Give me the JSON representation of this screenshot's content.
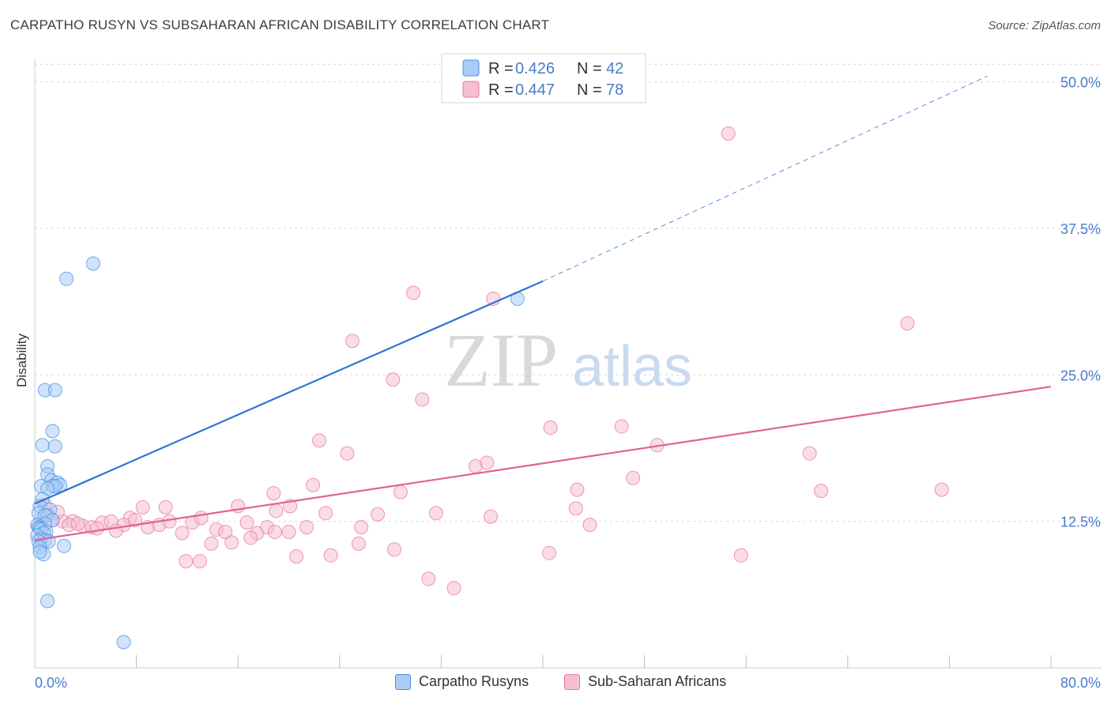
{
  "title": "CARPATHO RUSYN VS SUBSAHARAN AFRICAN DISABILITY CORRELATION CHART",
  "source": "Source: ZipAtlas.com",
  "watermark": {
    "zip": "ZIP",
    "atlas": "atlas"
  },
  "colors": {
    "blue": "#4a90e2",
    "blue_fill": "#aaccf5",
    "blue_line": "#2f75d0",
    "pink": "#e8779c",
    "pink_fill": "#f6bfd1",
    "pink_line": "#e0648e",
    "tick_label": "#4a7cc9",
    "grid": "#d9d9d9"
  },
  "legend": {
    "rows": [
      {
        "r_label": "R = ",
        "r_value": "0.426",
        "n_label": "N = ",
        "n_value": "42",
        "series": "blue"
      },
      {
        "r_label": "R = ",
        "r_value": "0.447",
        "n_label": "N = ",
        "n_value": "78",
        "series": "pink"
      }
    ]
  },
  "bottom_legend": {
    "items": [
      {
        "label": "Carpatho Rusyns",
        "series": "blue"
      },
      {
        "label": "Sub-Saharan Africans",
        "series": "pink"
      }
    ]
  },
  "chart_data": {
    "type": "scatter",
    "title": "CARPATHO RUSYN VS SUBSAHARAN AFRICAN DISABILITY CORRELATION CHART",
    "xlabel": "",
    "ylabel": "Disability",
    "xlim": [
      0,
      80
    ],
    "ylim": [
      0,
      52
    ],
    "x_tick_labels": [
      "0.0%",
      "80.0%"
    ],
    "y_ticks": [
      12.5,
      25.0,
      37.5,
      50.0
    ],
    "y_tick_labels": [
      "12.5%",
      "25.0%",
      "37.5%",
      "50.0%"
    ],
    "grid": true,
    "series": [
      {
        "name": "Carpatho Rusyns",
        "color": "blue",
        "trend": {
          "x0": 0,
          "y0": 14.0,
          "x1": 40,
          "y1": 33.0,
          "dash_x1": 75,
          "dash_y1": 50.5
        },
        "points": [
          [
            4.6,
            34.5
          ],
          [
            2.5,
            33.2
          ],
          [
            38.0,
            31.5
          ],
          [
            0.8,
            23.7
          ],
          [
            1.6,
            23.7
          ],
          [
            1.4,
            20.2
          ],
          [
            0.6,
            19.0
          ],
          [
            1.6,
            18.9
          ],
          [
            1.0,
            17.2
          ],
          [
            1.0,
            16.5
          ],
          [
            1.3,
            16.0
          ],
          [
            1.8,
            15.8
          ],
          [
            2.0,
            15.6
          ],
          [
            1.4,
            15.5
          ],
          [
            1.6,
            15.5
          ],
          [
            0.5,
            15.5
          ],
          [
            1.0,
            15.3
          ],
          [
            0.6,
            14.4
          ],
          [
            0.4,
            13.8
          ],
          [
            0.3,
            13.2
          ],
          [
            1.2,
            13.5
          ],
          [
            1.0,
            13.0
          ],
          [
            0.8,
            13.0
          ],
          [
            1.4,
            12.6
          ],
          [
            0.8,
            12.3
          ],
          [
            0.2,
            12.2
          ],
          [
            0.3,
            12.0
          ],
          [
            0.4,
            11.9
          ],
          [
            0.5,
            11.8
          ],
          [
            0.9,
            11.6
          ],
          [
            0.7,
            11.5
          ],
          [
            0.2,
            11.3
          ],
          [
            0.5,
            11.0
          ],
          [
            0.8,
            10.9
          ],
          [
            0.3,
            10.8
          ],
          [
            1.1,
            10.8
          ],
          [
            0.4,
            10.3
          ],
          [
            2.3,
            10.4
          ],
          [
            0.7,
            9.7
          ],
          [
            0.4,
            9.9
          ],
          [
            1.0,
            5.7
          ],
          [
            7.0,
            2.2
          ]
        ]
      },
      {
        "name": "Sub-Saharan Africans",
        "color": "pink",
        "trend": {
          "x0": 0,
          "y0": 10.9,
          "x1": 80,
          "y1": 24.0
        },
        "points": [
          [
            54.6,
            45.6
          ],
          [
            68.7,
            29.4
          ],
          [
            29.8,
            32.0
          ],
          [
            36.1,
            31.5
          ],
          [
            25.0,
            27.9
          ],
          [
            28.2,
            24.6
          ],
          [
            30.5,
            22.9
          ],
          [
            40.6,
            20.5
          ],
          [
            46.2,
            20.6
          ],
          [
            22.4,
            19.4
          ],
          [
            49.0,
            19.0
          ],
          [
            24.6,
            18.3
          ],
          [
            61.0,
            18.3
          ],
          [
            34.7,
            17.2
          ],
          [
            35.6,
            17.5
          ],
          [
            47.1,
            16.2
          ],
          [
            21.9,
            15.6
          ],
          [
            42.7,
            15.2
          ],
          [
            61.9,
            15.1
          ],
          [
            71.4,
            15.2
          ],
          [
            28.8,
            15.0
          ],
          [
            18.8,
            14.9
          ],
          [
            8.5,
            13.7
          ],
          [
            10.3,
            13.7
          ],
          [
            16.0,
            13.8
          ],
          [
            20.1,
            13.8
          ],
          [
            19.0,
            13.4
          ],
          [
            27.0,
            13.1
          ],
          [
            22.9,
            13.2
          ],
          [
            31.6,
            13.2
          ],
          [
            42.6,
            13.6
          ],
          [
            35.9,
            12.9
          ],
          [
            7.5,
            12.8
          ],
          [
            0.5,
            12.7
          ],
          [
            1.4,
            12.6
          ],
          [
            2.2,
            12.5
          ],
          [
            3.0,
            12.5
          ],
          [
            3.8,
            12.1
          ],
          [
            4.5,
            12.0
          ],
          [
            5.3,
            12.4
          ],
          [
            6.0,
            12.5
          ],
          [
            7.0,
            12.2
          ],
          [
            7.9,
            12.6
          ],
          [
            8.9,
            12.0
          ],
          [
            9.8,
            12.2
          ],
          [
            10.6,
            12.5
          ],
          [
            11.6,
            11.5
          ],
          [
            12.4,
            12.4
          ],
          [
            13.1,
            12.8
          ],
          [
            14.3,
            11.8
          ],
          [
            15.0,
            11.6
          ],
          [
            16.7,
            12.4
          ],
          [
            17.5,
            11.5
          ],
          [
            18.3,
            12.0
          ],
          [
            20.0,
            11.6
          ],
          [
            21.4,
            12.0
          ],
          [
            25.7,
            12.0
          ],
          [
            43.7,
            12.2
          ],
          [
            0.8,
            13.9
          ],
          [
            1.8,
            13.3
          ],
          [
            2.7,
            12.2
          ],
          [
            4.9,
            11.9
          ],
          [
            6.4,
            11.7
          ],
          [
            3.4,
            12.3
          ],
          [
            13.9,
            10.6
          ],
          [
            15.5,
            10.7
          ],
          [
            17.0,
            11.1
          ],
          [
            18.9,
            11.6
          ],
          [
            25.5,
            10.6
          ],
          [
            23.3,
            9.6
          ],
          [
            20.6,
            9.5
          ],
          [
            28.3,
            10.1
          ],
          [
            40.5,
            9.8
          ],
          [
            55.6,
            9.6
          ],
          [
            11.9,
            9.1
          ],
          [
            13.0,
            9.1
          ],
          [
            31.0,
            7.6
          ],
          [
            33.0,
            6.8
          ]
        ]
      }
    ]
  }
}
